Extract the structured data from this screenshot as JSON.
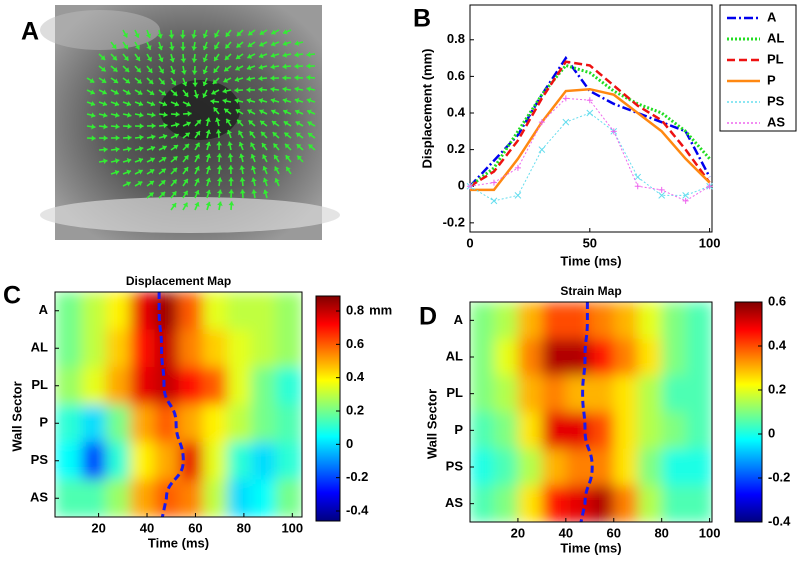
{
  "chart_data": [
    {
      "type": "image",
      "panel_label": "A"
    },
    {
      "type": "line",
      "panel_label": "B",
      "xlabel": "Time (ms)",
      "ylabel": "Displacement (mm)",
      "x": [
        0,
        10,
        20,
        30,
        40,
        50,
        60,
        70,
        80,
        90,
        100
      ],
      "xlim": [
        0,
        101
      ],
      "xticks": [
        0,
        50,
        100
      ],
      "ylim": [
        -0.25,
        0.99
      ],
      "yticks": [
        -0.2,
        0,
        0.2,
        0.4,
        0.6,
        0.8
      ],
      "series": [
        {
          "name": "A",
          "color": "#0000ee",
          "linestyle": "dash-dot",
          "values": [
            0,
            0.14,
            0.28,
            0.5,
            0.7,
            0.52,
            0.45,
            0.4,
            0.35,
            0.3,
            0.05
          ]
        },
        {
          "name": "AL",
          "color": "#22dd22",
          "linestyle": "dotted",
          "values": [
            0,
            0.1,
            0.3,
            0.5,
            0.66,
            0.62,
            0.52,
            0.45,
            0.4,
            0.3,
            0.15
          ]
        },
        {
          "name": "PL",
          "color": "#ee1111",
          "linestyle": "dashed",
          "values": [
            0,
            0.08,
            0.25,
            0.48,
            0.68,
            0.66,
            0.55,
            0.44,
            0.36,
            0.2,
            0.02
          ]
        },
        {
          "name": "P",
          "color": "#ff8811",
          "linestyle": "solid",
          "values": [
            -0.02,
            -0.02,
            0.15,
            0.35,
            0.52,
            0.53,
            0.5,
            0.4,
            0.3,
            0.15,
            0.02
          ]
        },
        {
          "name": "PS",
          "color": "#66ddee",
          "linestyle": "x-marker",
          "values": [
            0,
            -0.08,
            -0.05,
            0.2,
            0.35,
            0.4,
            0.3,
            0.05,
            -0.05,
            -0.05,
            0
          ]
        },
        {
          "name": "AS",
          "color": "#ee66ee",
          "linestyle": "plus-marker",
          "values": [
            0,
            0.02,
            0.1,
            0.35,
            0.48,
            0.47,
            0.3,
            0,
            -0.02,
            -0.08,
            0
          ]
        }
      ]
    },
    {
      "type": "heatmap",
      "panel_label": "C",
      "title": "Displacement Map",
      "xlabel": "Time (ms)",
      "ylabel": "Wall Sector",
      "categories": [
        "A",
        "AL",
        "PL",
        "P",
        "PS",
        "AS"
      ],
      "x": [
        8,
        18,
        28,
        38,
        48,
        58,
        68,
        78,
        88,
        98
      ],
      "xlim": [
        2,
        104
      ],
      "xticks": [
        20,
        40,
        60,
        80,
        100
      ],
      "values": [
        [
          0.2,
          0.3,
          0.4,
          0.75,
          0.85,
          0.6,
          0.35,
          0.3,
          0.3,
          0.25
        ],
        [
          0.2,
          0.3,
          0.45,
          0.7,
          0.8,
          0.55,
          0.45,
          0.35,
          0.3,
          0.25
        ],
        [
          0.25,
          0.35,
          0.5,
          0.75,
          0.8,
          0.7,
          0.6,
          0.35,
          0.2,
          0.1
        ],
        [
          0.1,
          0,
          0.2,
          0.5,
          0.6,
          0.5,
          0.4,
          0.3,
          0.2,
          0.15
        ],
        [
          0.05,
          -0.2,
          0.1,
          0.4,
          0.5,
          0.75,
          0.35,
          0.1,
          0,
          0.1
        ],
        [
          0.15,
          0.15,
          0.25,
          0.5,
          0.6,
          0.55,
          0.3,
          0,
          0.05,
          0.2
        ]
      ],
      "peak_times": [
        45,
        46,
        47,
        52,
        55,
        48
      ],
      "peak_line_color": "#1a1aee",
      "clim": [
        -0.46,
        0.89
      ],
      "cticks": [
        -0.4,
        -0.2,
        0,
        0.2,
        0.4,
        0.6,
        0.8
      ],
      "colorbar_unit": "mm"
    },
    {
      "type": "heatmap",
      "panel_label": "D",
      "title": "Strain Map",
      "xlabel": "Time (ms)",
      "ylabel": "Wall Sector",
      "categories": [
        "A",
        "AL",
        "PL",
        "P",
        "PS",
        "AS"
      ],
      "x": [
        5,
        15,
        25,
        35,
        45,
        55,
        65,
        75,
        85,
        95
      ],
      "xlim": [
        0,
        101
      ],
      "xticks": [
        20,
        40,
        60,
        80,
        100
      ],
      "values": [
        [
          0.1,
          0.15,
          0.3,
          0.4,
          0.4,
          0.35,
          0.3,
          0.2,
          0.1,
          0.05
        ],
        [
          0.1,
          0.2,
          0.35,
          0.55,
          0.55,
          0.45,
          0.35,
          0.25,
          0.1,
          0.05
        ],
        [
          0.1,
          0.15,
          0.3,
          0.35,
          0.3,
          0.3,
          0.25,
          0.15,
          0.05,
          0.05
        ],
        [
          0.05,
          0.1,
          0.25,
          0.5,
          0.5,
          0.4,
          0.25,
          0.15,
          0.1,
          0.05
        ],
        [
          0,
          0.05,
          0.15,
          0.3,
          0.35,
          0.35,
          0.25,
          0.1,
          0,
          0
        ],
        [
          0.05,
          0.1,
          0.25,
          0.45,
          0.5,
          0.55,
          0.35,
          0.15,
          0.05,
          0.05
        ]
      ],
      "peak_times": [
        49,
        48,
        47,
        48,
        51,
        48
      ],
      "peak_line_color": "#1a1aee",
      "clim": [
        -0.4,
        0.6
      ],
      "cticks": [
        -0.4,
        -0.2,
        0,
        0.2,
        0.4,
        0.6
      ]
    }
  ]
}
